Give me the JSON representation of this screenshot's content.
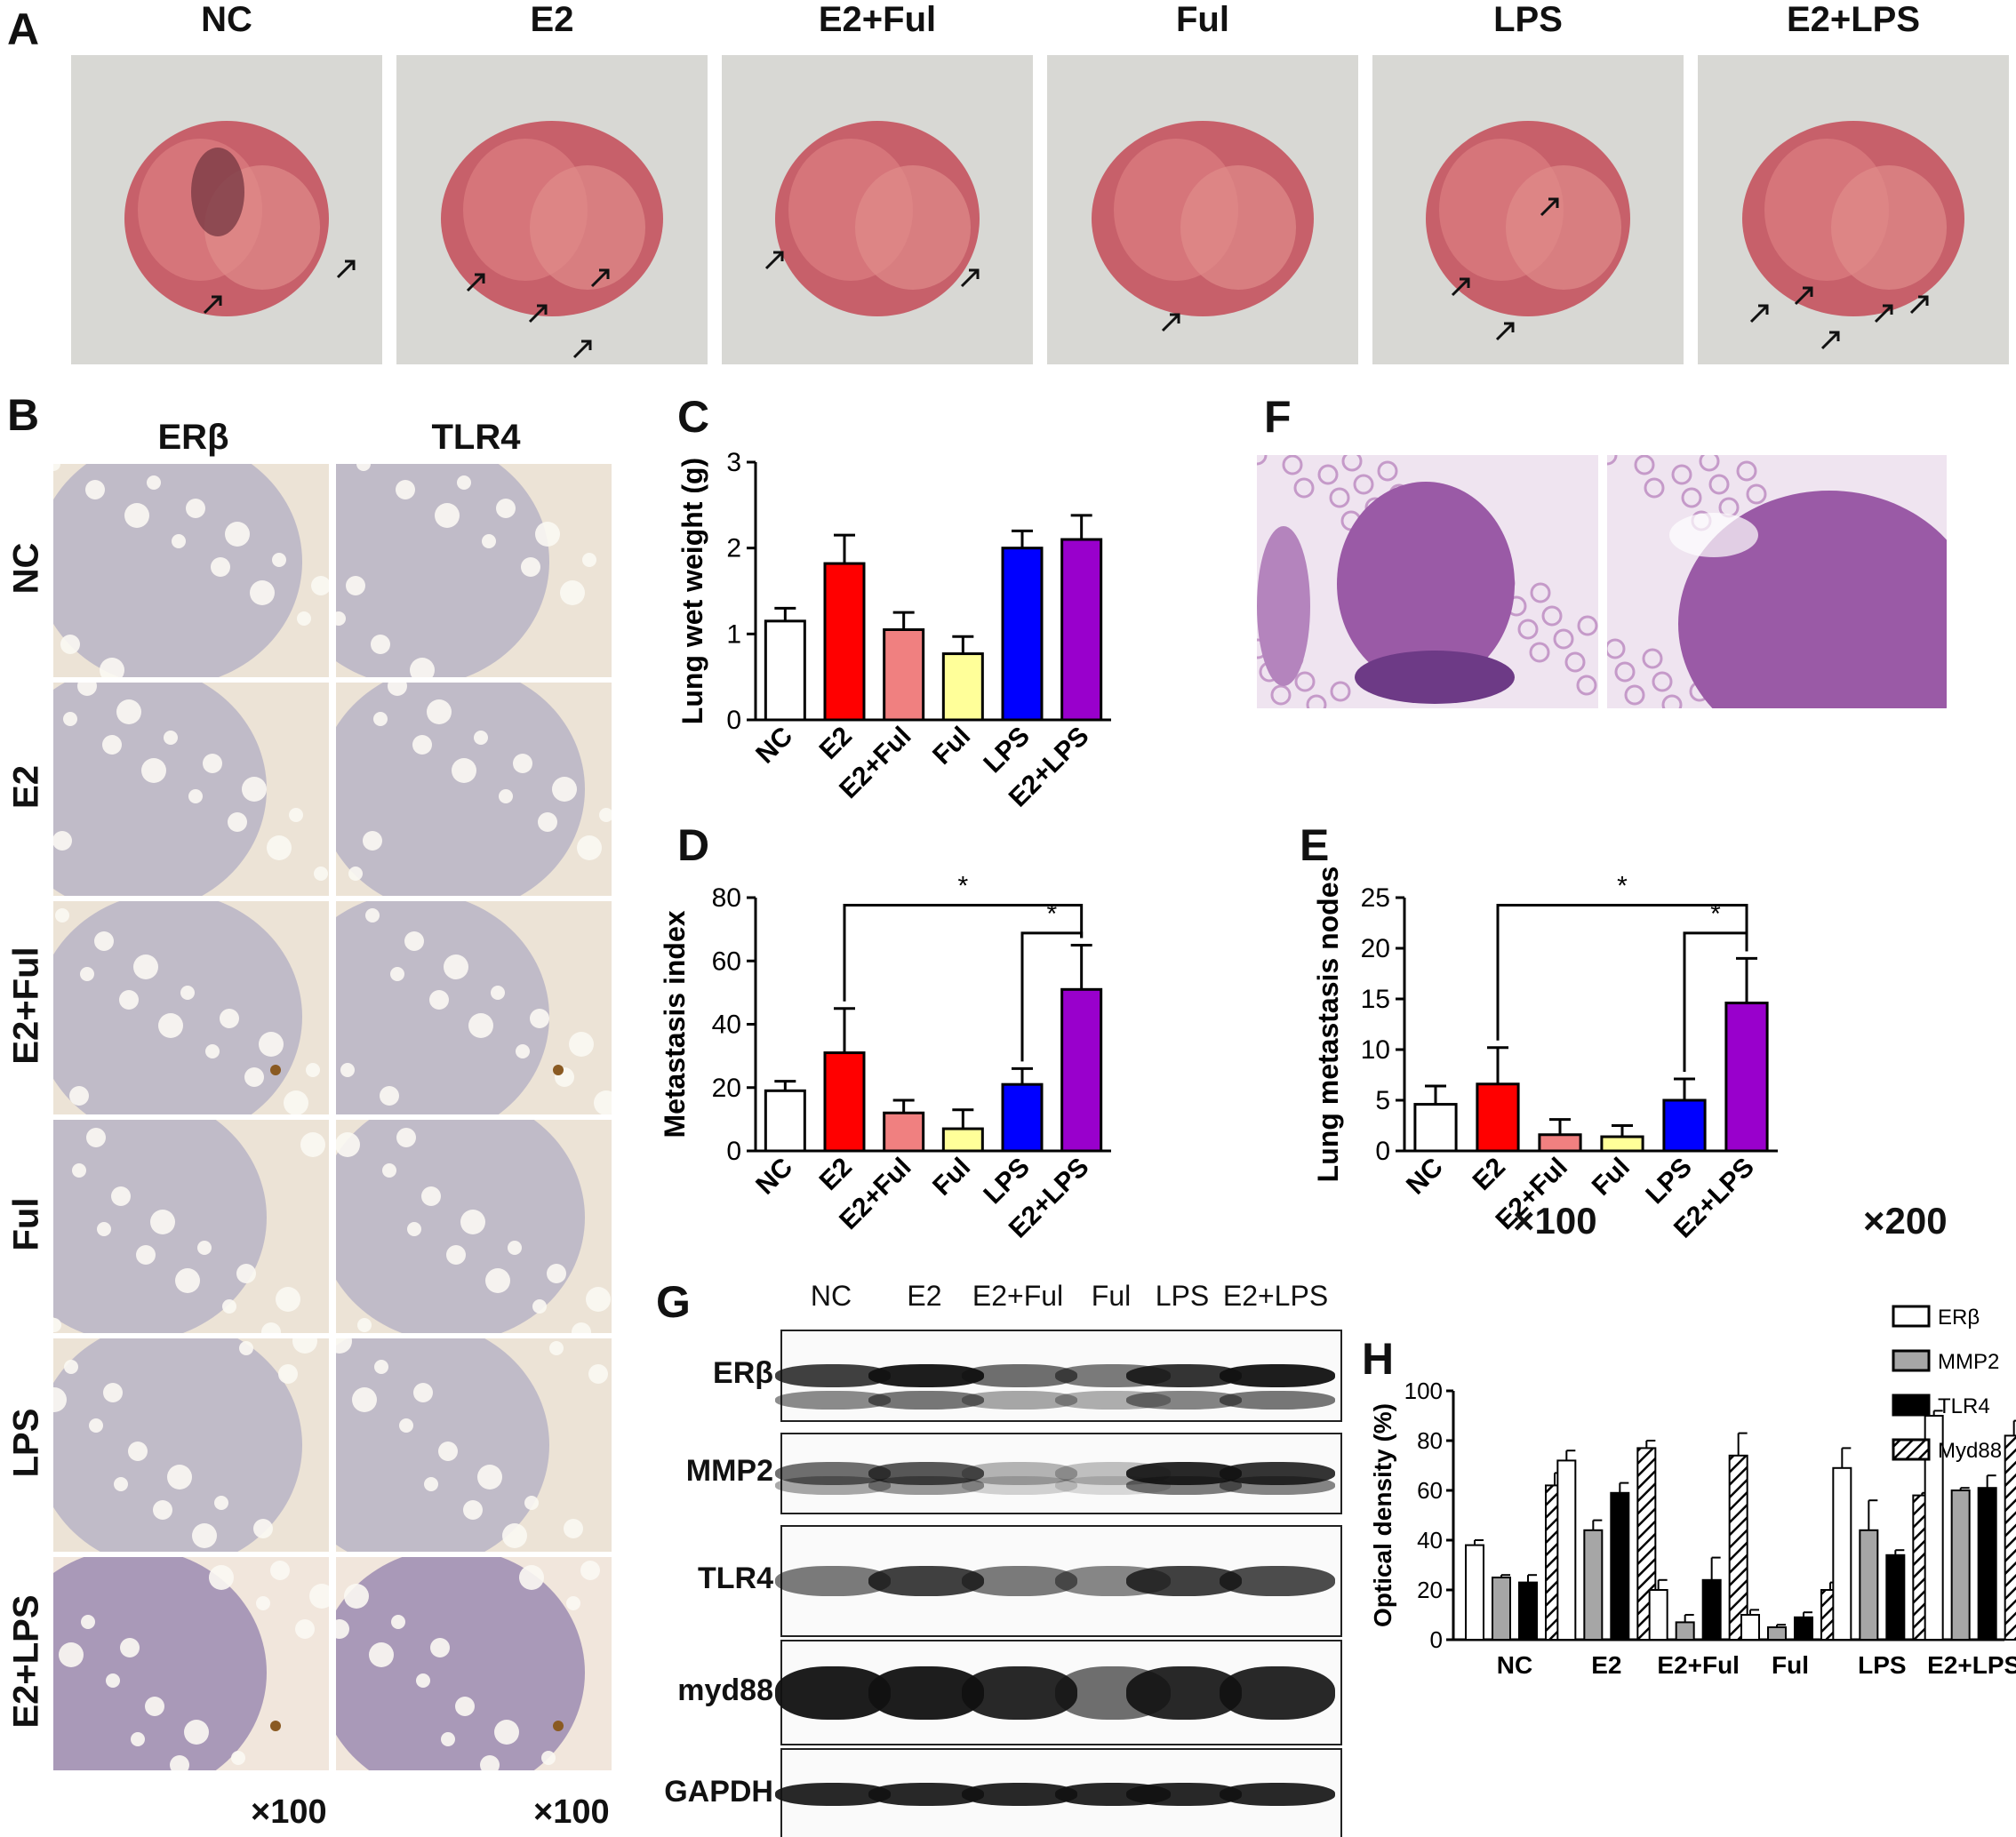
{
  "panel_letters": {
    "A": "A",
    "B": "B",
    "C": "C",
    "D": "D",
    "E": "E",
    "F": "F",
    "G": "G",
    "H": "H"
  },
  "panel_A": {
    "groups": [
      "NC",
      "E2",
      "E2+Ful",
      "Ful",
      "LPS",
      "E2+LPS"
    ]
  },
  "panel_B": {
    "columns": [
      "ERβ",
      "TLR4"
    ],
    "rows": [
      "NC",
      "E2",
      "E2+Ful",
      "Ful",
      "LPS",
      "E2+LPS"
    ],
    "magnification": [
      "×100",
      "×100"
    ]
  },
  "panel_F": {
    "magnification": [
      "×100",
      "×200"
    ]
  },
  "panel_G": {
    "lanes": [
      "NC",
      "E2",
      "E2+Ful",
      "Ful",
      "LPS",
      "E2+LPS"
    ],
    "proteins": [
      "ERβ",
      "MMP2",
      "TLR4",
      "myd88",
      "GAPDH"
    ],
    "band_intensity": {
      "ERβ": [
        0.8,
        0.95,
        0.6,
        0.55,
        0.85,
        0.95
      ],
      "MMP2": [
        0.6,
        0.7,
        0.3,
        0.25,
        0.9,
        0.85
      ],
      "TLR4": [
        0.55,
        0.8,
        0.55,
        0.5,
        0.8,
        0.75
      ],
      "myd88": [
        0.95,
        0.95,
        0.9,
        0.6,
        0.9,
        0.9
      ],
      "GAPDH": [
        0.9,
        0.9,
        0.9,
        0.9,
        0.9,
        0.9
      ]
    }
  },
  "colors": {
    "NC": "#ffffff",
    "E2": "#ff0000",
    "E2+Ful": "#f08080",
    "Ful": "#ffff99",
    "LPS": "#0000ff",
    "E2+LPS": "#9900cc"
  },
  "chart_data": [
    {
      "panel": "C",
      "type": "bar",
      "categories": [
        "NC",
        "E2",
        "E2+Ful",
        "Ful",
        "LPS",
        "E2+LPS"
      ],
      "values": [
        1.15,
        1.82,
        1.05,
        0.77,
        2.0,
        2.1
      ],
      "errors": [
        0.15,
        0.33,
        0.2,
        0.2,
        0.2,
        0.28
      ],
      "ylabel": "Lung wet weight (g)",
      "ylim": [
        0,
        3
      ],
      "yticks": [
        "0",
        "1",
        "2",
        "3"
      ]
    },
    {
      "panel": "D",
      "type": "bar",
      "categories": [
        "NC",
        "E2",
        "E2+Ful",
        "Ful",
        "LPS",
        "E2+LPS"
      ],
      "values": [
        19,
        31,
        12,
        7,
        21,
        51
      ],
      "errors": [
        3,
        14,
        4,
        6,
        5,
        14
      ],
      "ylabel": "Metastasis index",
      "ylim": [
        0,
        80
      ],
      "yticks": [
        "0",
        "20",
        "40",
        "60",
        "80"
      ],
      "significance": [
        "*",
        "*"
      ]
    },
    {
      "panel": "E",
      "type": "bar",
      "categories": [
        "NC",
        "E2",
        "E2+Ful",
        "Ful",
        "LPS",
        "E2+LPS"
      ],
      "values": [
        4.6,
        6.6,
        1.6,
        1.4,
        5.0,
        14.6
      ],
      "errors": [
        1.8,
        3.6,
        1.5,
        1.1,
        2.1,
        4.4
      ],
      "ylabel": "Lung metastasis nodes",
      "ylim": [
        0,
        25
      ],
      "yticks": [
        "0",
        "5",
        "10",
        "15",
        "20",
        "25"
      ],
      "significance": [
        "*",
        "*"
      ]
    },
    {
      "panel": "H",
      "type": "bar",
      "categories": [
        "NC",
        "E2",
        "E2+Ful",
        "Ful",
        "LPS",
        "E2+LPS"
      ],
      "series": [
        {
          "name": "ERβ",
          "values": [
            38,
            72,
            20,
            10,
            69,
            90
          ],
          "errors": [
            2,
            4,
            4,
            2,
            8,
            2
          ]
        },
        {
          "name": "MMP2",
          "values": [
            25,
            44,
            7,
            5,
            44,
            60
          ],
          "errors": [
            1,
            4,
            3,
            1,
            12,
            1
          ]
        },
        {
          "name": "TLR4",
          "values": [
            23,
            59,
            24,
            9,
            34,
            61
          ],
          "errors": [
            3,
            4,
            9,
            2,
            2,
            5
          ]
        },
        {
          "name": "Myd88",
          "values": [
            62,
            77,
            74,
            20,
            58,
            82
          ],
          "errors": [
            5,
            3,
            9,
            3,
            1,
            6
          ]
        }
      ],
      "ylabel": "Optical density (%)",
      "ylim": [
        0,
        100
      ],
      "yticks": [
        "0",
        "20",
        "40",
        "60",
        "80",
        "100"
      ],
      "legend": "top-right"
    }
  ]
}
